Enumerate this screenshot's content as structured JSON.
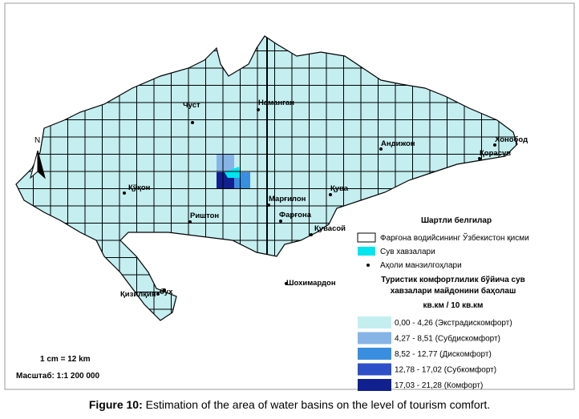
{
  "map": {
    "north": "N",
    "cities": [
      {
        "label": "Чуст"
      },
      {
        "label": "Наманган"
      },
      {
        "label": "Андижон"
      },
      {
        "label": "Хонобод"
      },
      {
        "label": "Қорасув"
      },
      {
        "label": "Қўқон"
      },
      {
        "label": "Қува"
      },
      {
        "label": "Марғилон"
      },
      {
        "label": "Фарғона"
      },
      {
        "label": "Риштон"
      },
      {
        "label": "Қувасой"
      },
      {
        "label": "Қизилқия"
      },
      {
        "label": "бух"
      },
      {
        "label": "Шохимардон"
      }
    ],
    "legend": {
      "title": "Шартли белгилар",
      "items": [
        "Фарғона водийсининг Ўзбекистон қисми",
        "Сув хавзалари",
        "Аҳоли манзилгоҳлари"
      ],
      "scale_title": [
        "Туристик комфортлилик бўйича сув",
        "хавзалари майдонини баҳолаш"
      ],
      "unit": "кв.км / 10 кв.км",
      "classes": [
        {
          "label": "0,00 - 4,26 (Экстрадискомфорт)",
          "color": "#c4eef0"
        },
        {
          "label": "4,27 - 8,51 (Субдискомфорт)",
          "color": "#86b4e6"
        },
        {
          "label": "8,52 - 12,77 (Дискомфорт)",
          "color": "#3a8ee0"
        },
        {
          "label": "12,78 - 17,02 (Субкомфорт)",
          "color": "#2d50c8"
        },
        {
          "label": "17,03 - 21,28 (Комфорт)",
          "color": "#10208e"
        }
      ]
    },
    "scale": {
      "ratio": "1 cm = 12 km",
      "text": "Масштаб: 1:1 200 000"
    }
  },
  "caption": {
    "label": "Figure 10:",
    "text": " Estimation of the area of water basins on the level of tourism comfort."
  }
}
